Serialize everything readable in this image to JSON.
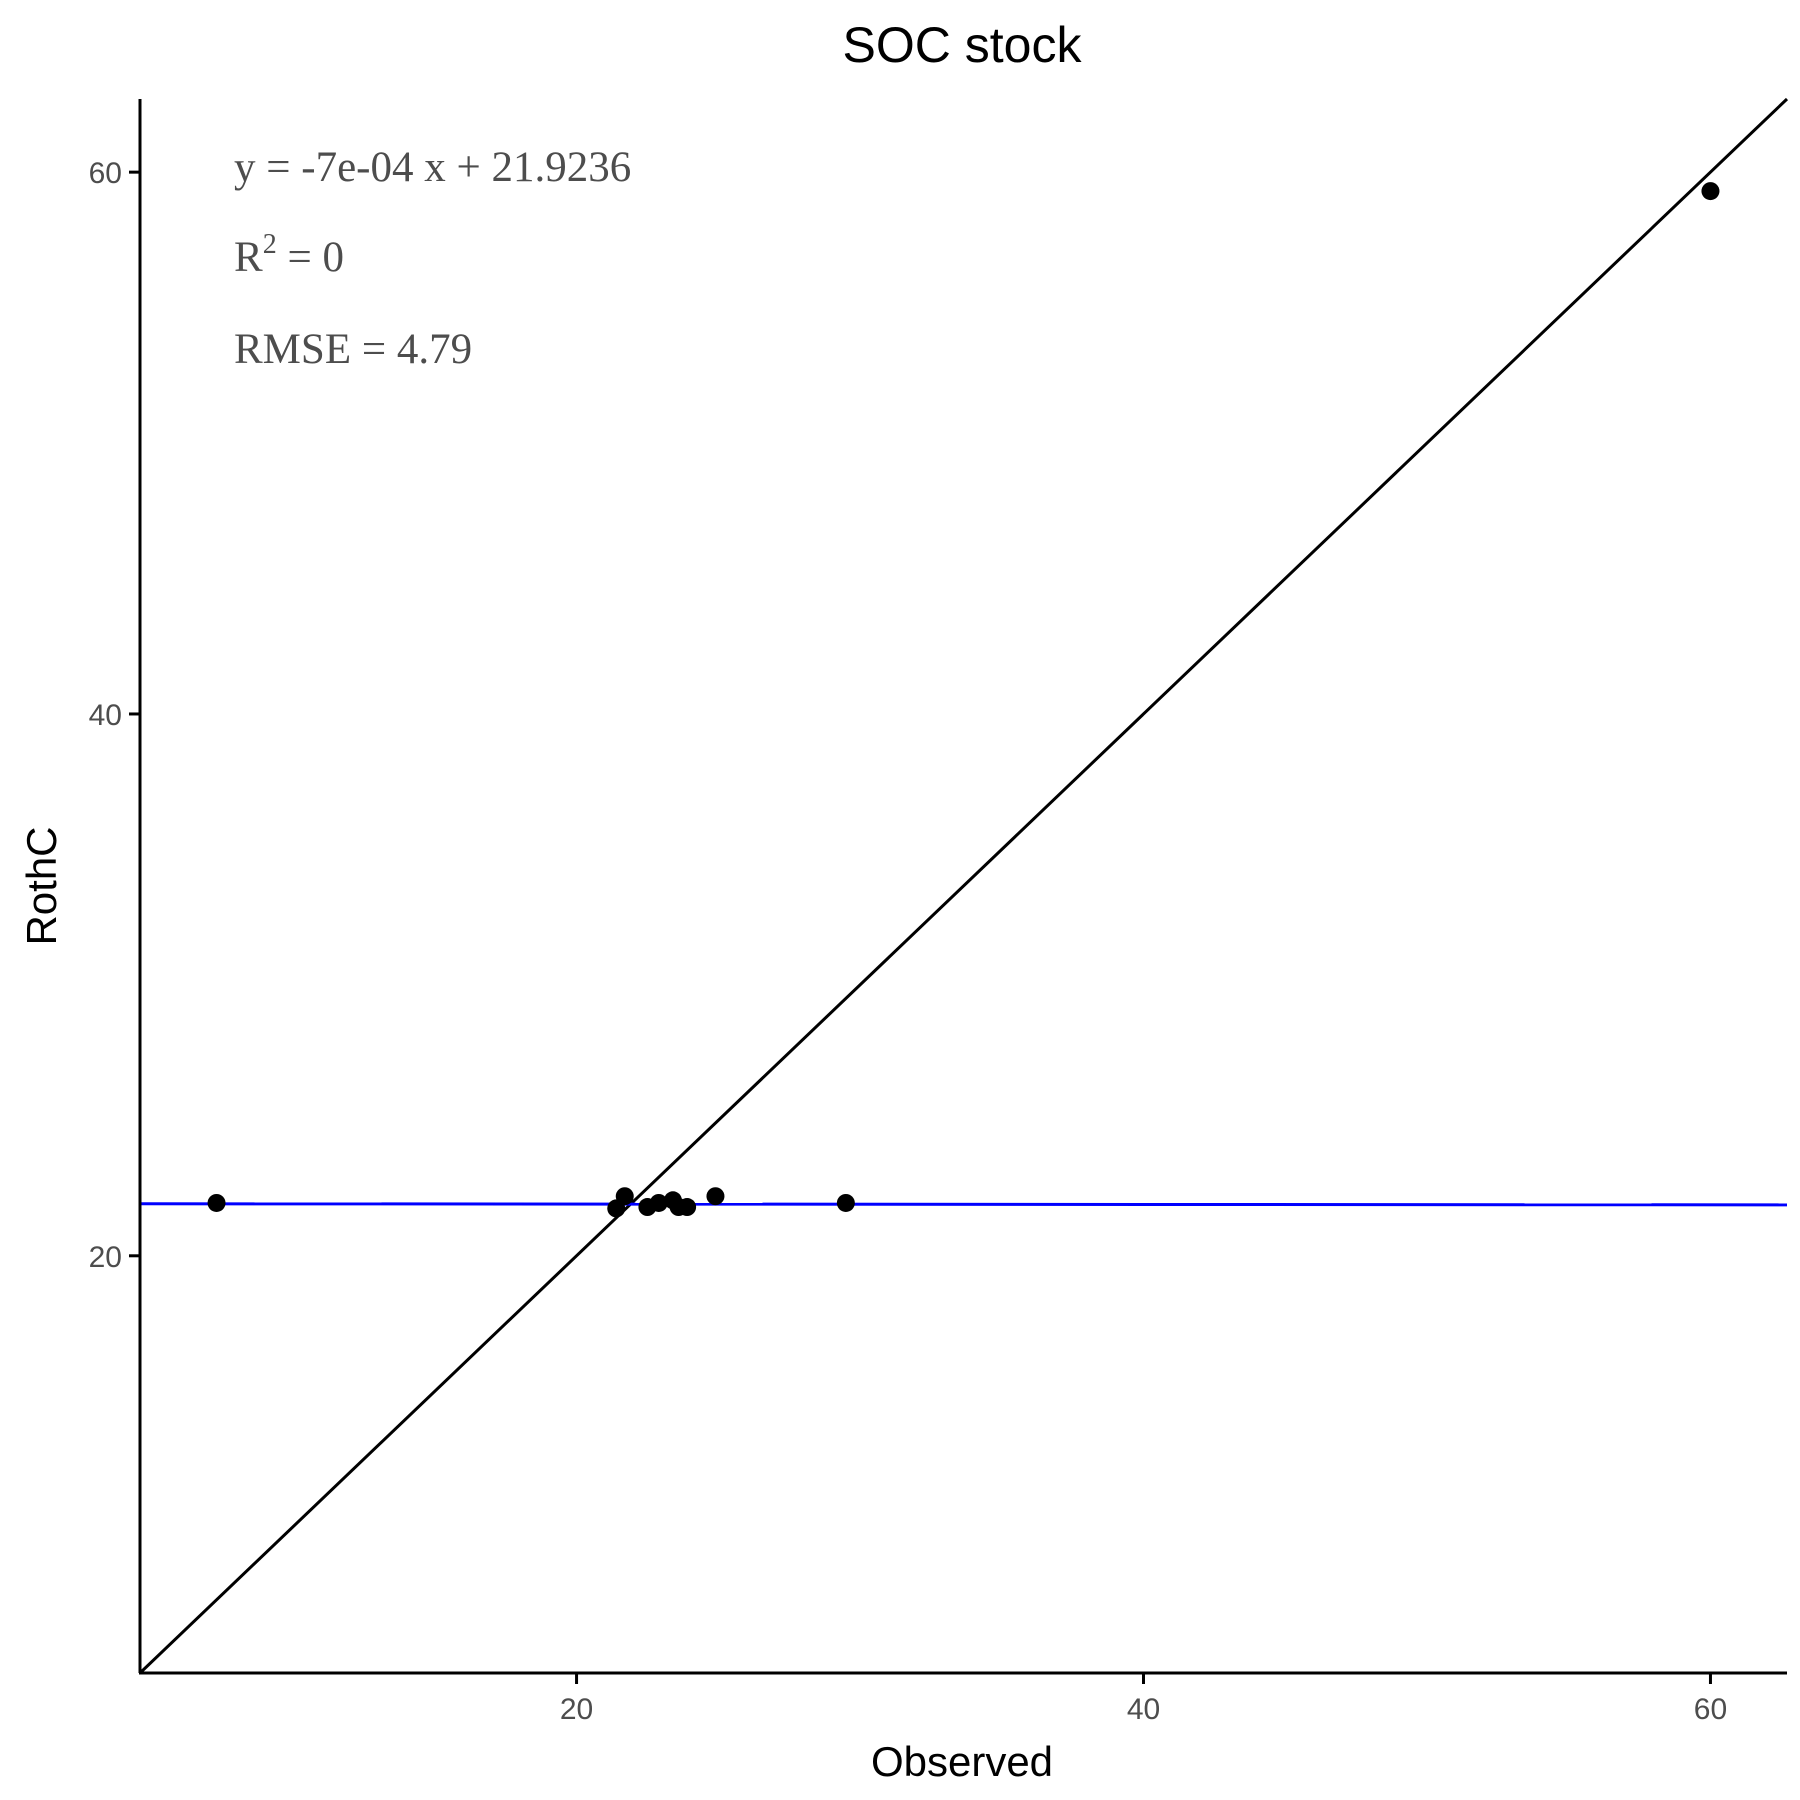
{
  "chart_data": {
    "type": "scatter",
    "title": "SOC stock",
    "xlabel": "Observed",
    "ylabel": "RothC",
    "xlim": [
      4.6,
      62.7
    ],
    "ylim": [
      4.6,
      62.7
    ],
    "x_ticks": [
      20,
      40,
      60
    ],
    "y_ticks": [
      20,
      40,
      60
    ],
    "grid": false,
    "series": [
      {
        "points": [
          {
            "x": 7.3,
            "y": 21.95
          },
          {
            "x": 21.4,
            "y": 21.75
          },
          {
            "x": 21.7,
            "y": 22.2
          },
          {
            "x": 22.5,
            "y": 21.8
          },
          {
            "x": 22.9,
            "y": 21.95
          },
          {
            "x": 23.4,
            "y": 22.05
          },
          {
            "x": 23.6,
            "y": 21.8
          },
          {
            "x": 23.9,
            "y": 21.8
          },
          {
            "x": 24.9,
            "y": 22.2
          },
          {
            "x": 29.5,
            "y": 21.95
          },
          {
            "x": 60.0,
            "y": 59.3
          }
        ],
        "color": "#000000"
      }
    ],
    "reference_line": {
      "type": "identity",
      "slope": 1,
      "intercept": 0,
      "color": "#000000"
    },
    "fit_line": {
      "slope": -0.0007,
      "intercept": 21.9236,
      "color": "#0000ff"
    },
    "annotations": {
      "equation": "y = -7e-04 x + 21.9236",
      "r2_base": "R",
      "r2_sup": "2",
      "r2_value": " = 0",
      "rmse": "RMSE = 4.79"
    }
  }
}
